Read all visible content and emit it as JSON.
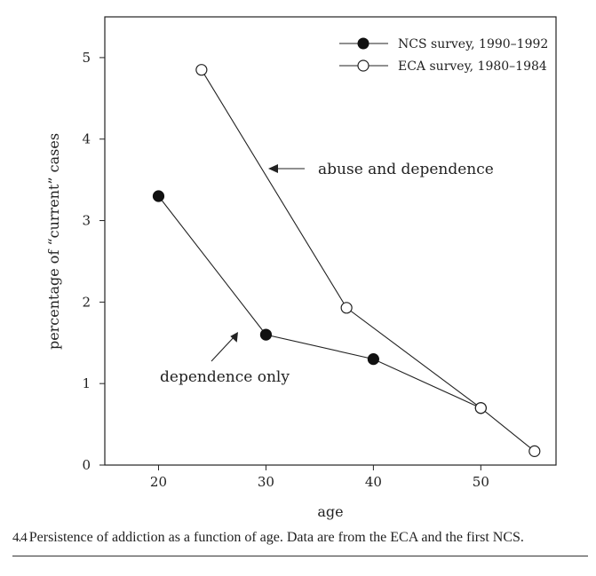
{
  "chart_data": {
    "type": "line",
    "xlabel": "age",
    "ylabel": "percentage of “current” cases",
    "xlim": [
      15,
      57
    ],
    "ylim": [
      0,
      5.5
    ],
    "xticks": [
      20,
      30,
      40,
      50
    ],
    "yticks": [
      0,
      1,
      2,
      3,
      4,
      5
    ],
    "series": [
      {
        "name": "NCS survey, 1990–1992",
        "marker": "filled",
        "x": [
          20,
          30,
          40,
          50
        ],
        "y": [
          3.3,
          1.6,
          1.3,
          0.7
        ]
      },
      {
        "name": "ECA survey, 1980–1984",
        "marker": "open",
        "x": [
          24,
          37.5,
          50,
          55
        ],
        "y": [
          4.85,
          1.93,
          0.7,
          0.17
        ]
      }
    ],
    "annotations": [
      {
        "text": "abuse and dependence",
        "points_to_series": 1
      },
      {
        "text": "dependence only",
        "points_to_series": 0
      }
    ]
  },
  "caption": {
    "number": "4.4",
    "text": "Persistence of addiction as a function of age. Data are from the ECA and the first NCS."
  }
}
